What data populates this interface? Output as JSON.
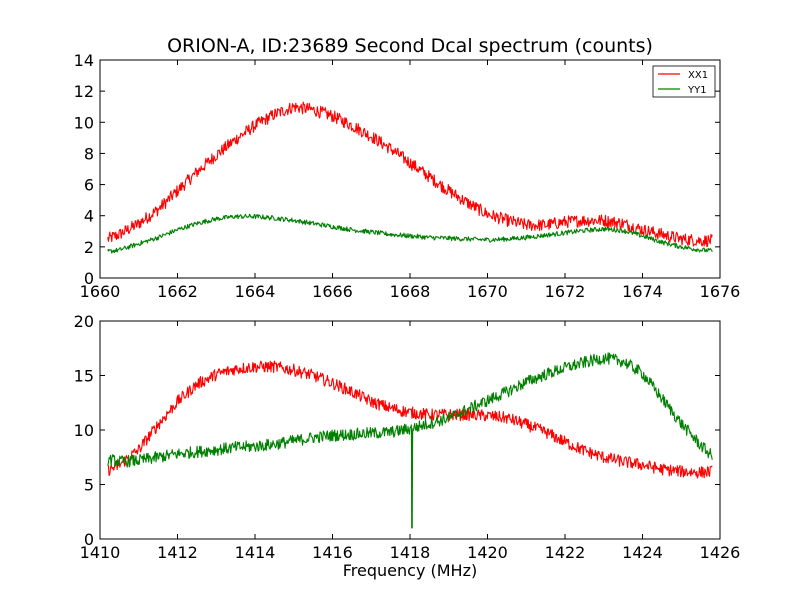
{
  "chart_data": [
    {
      "type": "line",
      "title": "ORION-A, ID:23689 Second Dcal spectrum (counts)",
      "xlabel": "",
      "ylabel": "",
      "xlim": [
        1660,
        1676
      ],
      "ylim": [
        0,
        14
      ],
      "xticks": [
        1660,
        1662,
        1664,
        1666,
        1668,
        1670,
        1672,
        1674,
        1676
      ],
      "yticks": [
        0,
        2,
        4,
        6,
        8,
        10,
        12,
        14
      ],
      "legend_position": "top-right",
      "series": [
        {
          "name": "XX1",
          "color": "#ff0000",
          "x": [
            1660.2,
            1660.5,
            1661,
            1661.5,
            1662,
            1662.5,
            1663,
            1663.5,
            1664,
            1664.5,
            1665,
            1665.5,
            1666,
            1666.5,
            1667,
            1667.5,
            1668,
            1668.5,
            1669,
            1669.5,
            1670,
            1670.5,
            1671,
            1671.5,
            1672,
            1672.5,
            1673,
            1673.5,
            1674,
            1674.5,
            1675,
            1675.5,
            1675.8
          ],
          "y": [
            2.5,
            2.8,
            3.5,
            4.4,
            5.6,
            6.8,
            7.9,
            8.9,
            9.8,
            10.5,
            11.0,
            10.8,
            10.4,
            9.8,
            9.1,
            8.3,
            7.4,
            6.5,
            5.6,
            4.8,
            4.1,
            3.7,
            3.4,
            3.4,
            3.6,
            3.7,
            3.7,
            3.5,
            3.1,
            2.8,
            2.5,
            2.4,
            2.4
          ],
          "noise": 0.4
        },
        {
          "name": "YY1",
          "color": "#008000",
          "x": [
            1660.2,
            1660.5,
            1661,
            1661.5,
            1662,
            1662.5,
            1663,
            1663.5,
            1664,
            1664.5,
            1665,
            1665.5,
            1666,
            1666.5,
            1667,
            1667.5,
            1668,
            1668.5,
            1669,
            1669.5,
            1670,
            1670.5,
            1671,
            1671.5,
            1672,
            1672.5,
            1673,
            1673.5,
            1674,
            1674.5,
            1675,
            1675.5,
            1675.8
          ],
          "y": [
            1.7,
            1.8,
            2.2,
            2.6,
            3.1,
            3.5,
            3.8,
            3.95,
            3.95,
            3.85,
            3.7,
            3.5,
            3.3,
            3.1,
            2.95,
            2.8,
            2.7,
            2.6,
            2.55,
            2.5,
            2.45,
            2.5,
            2.6,
            2.75,
            2.9,
            3.05,
            3.15,
            3.05,
            2.7,
            2.3,
            2.0,
            1.8,
            1.75
          ],
          "noise": 0.15
        }
      ]
    },
    {
      "type": "line",
      "title": "",
      "xlabel": "Frequency (MHz)",
      "ylabel": "",
      "xlim": [
        1410,
        1426
      ],
      "ylim": [
        0,
        20
      ],
      "xticks": [
        1410,
        1412,
        1414,
        1416,
        1418,
        1420,
        1422,
        1424,
        1426
      ],
      "yticks": [
        0,
        5,
        10,
        15,
        20
      ],
      "series": [
        {
          "name": "XX1",
          "color": "#ff0000",
          "x": [
            1410.2,
            1410.5,
            1411,
            1411.5,
            1412,
            1412.5,
            1413,
            1413.5,
            1414,
            1414.5,
            1415,
            1415.5,
            1416,
            1416.5,
            1417,
            1417.5,
            1418,
            1418.5,
            1419,
            1419.5,
            1420,
            1420.5,
            1421,
            1421.5,
            1422,
            1422.5,
            1423,
            1423.5,
            1424,
            1424.5,
            1425,
            1425.5,
            1425.8
          ],
          "y": [
            6.3,
            6.8,
            8.2,
            10.5,
            12.6,
            14.2,
            15.1,
            15.6,
            15.8,
            15.8,
            15.5,
            15.0,
            14.3,
            13.5,
            12.6,
            12.0,
            11.6,
            11.4,
            11.4,
            11.4,
            11.3,
            11.1,
            10.5,
            9.8,
            8.9,
            8.1,
            7.5,
            7.1,
            6.8,
            6.4,
            6.2,
            6.1,
            6.2
          ],
          "noise": 0.55
        },
        {
          "name": "YY1",
          "color": "#008000",
          "x": [
            1410.2,
            1410.5,
            1411,
            1411.5,
            1412,
            1412.5,
            1413,
            1413.5,
            1414,
            1414.5,
            1415,
            1415.5,
            1416,
            1416.5,
            1417,
            1417.5,
            1418,
            1418.5,
            1419,
            1419.5,
            1420,
            1420.5,
            1421,
            1421.5,
            1422,
            1422.5,
            1423,
            1423.5,
            1424,
            1424.5,
            1425,
            1425.5,
            1425.8
          ],
          "y": [
            7.3,
            7.1,
            7.2,
            7.5,
            7.8,
            8.0,
            8.2,
            8.4,
            8.5,
            8.7,
            9.0,
            9.3,
            9.5,
            9.6,
            9.7,
            9.8,
            10.1,
            10.6,
            11.1,
            11.9,
            12.7,
            13.5,
            14.4,
            15.1,
            15.7,
            16.2,
            16.6,
            16.3,
            15.2,
            12.9,
            10.6,
            8.6,
            7.6
          ],
          "noise": 0.55,
          "spike": {
            "x": 1418.05,
            "y": 1.0
          }
        }
      ]
    }
  ]
}
